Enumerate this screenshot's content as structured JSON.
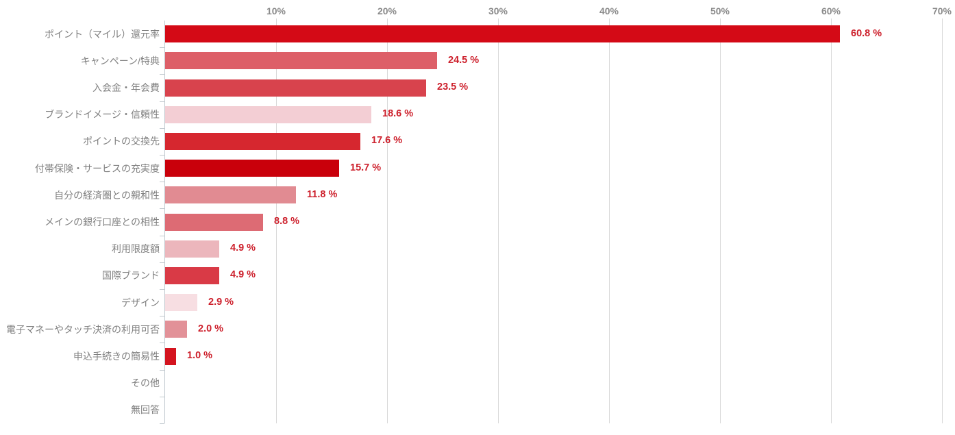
{
  "chart_data": {
    "type": "bar",
    "orientation": "horizontal",
    "title": "",
    "xlabel": "",
    "ylabel": "",
    "xlim": [
      0,
      70
    ],
    "grid": true,
    "axis_position": "top",
    "categories": [
      "ポイント（マイル）還元率",
      "キャンペーン/特典",
      "入会金・年会費",
      "ブランドイメージ・信頼性",
      "ポイントの交換先",
      "付帯保険・サービスの充実度",
      "自分の経済圏との親和性",
      "メインの銀行口座との相性",
      "利用限度額",
      "国際ブランド",
      "デザイン",
      "電子マネーやタッチ決済の利用可否",
      "申込手続きの簡易性",
      "その他",
      "無回答"
    ],
    "values": [
      60.8,
      24.5,
      23.5,
      18.6,
      17.6,
      15.7,
      11.8,
      8.8,
      4.9,
      4.9,
      2.9,
      2.0,
      1.0,
      0,
      0
    ],
    "value_labels": [
      "60.8 %",
      "24.5 %",
      "23.5 %",
      "18.6 %",
      "17.6 %",
      "15.7 %",
      "11.8 %",
      "8.8 %",
      "4.9 %",
      "4.9 %",
      "2.9 %",
      "2.0 %",
      "1.0 %",
      "",
      ""
    ],
    "bar_colors": [
      "#d40a16",
      "#dd5f68",
      "#d8434d",
      "#f3ced4",
      "#d6272f",
      "#c9000b",
      "#e18b92",
      "#dd6b74",
      "#ecb6bc",
      "#d93a46",
      "#f7dee2",
      "#e29198",
      "#d4141f",
      "#ffffff",
      "#ffffff"
    ],
    "x_tick_labels": [
      "10%",
      "20%",
      "30%",
      "40%",
      "50%",
      "60%",
      "70%"
    ],
    "x_tick_values": [
      10,
      20,
      30,
      40,
      50,
      60,
      70
    ],
    "colors": {
      "value_label": "#cd202c",
      "category_label": "#7f7f7f",
      "axis_label": "#8a8a8a",
      "gridline": "#d8d8d8",
      "axis_line": "#c0c8ce"
    }
  }
}
